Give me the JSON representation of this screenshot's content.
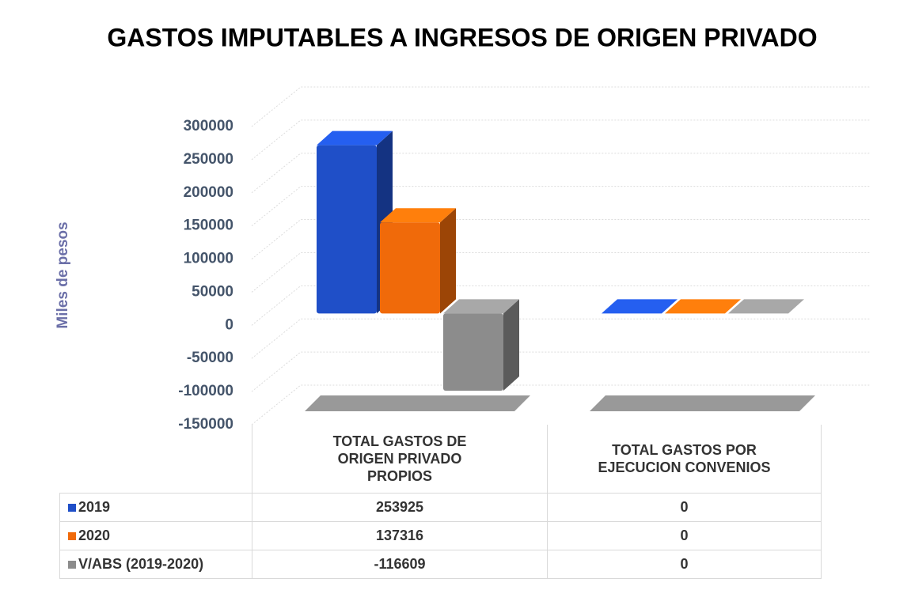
{
  "chart_data": {
    "type": "bar3d",
    "title": "GASTOS IMPUTABLES A INGRESOS DE ORIGEN PRIVADO",
    "y_label": "Miles de pesos",
    "categories": [
      "TOTAL GASTOS DE ORIGEN PRIVADO PROPIOS",
      "TOTAL GASTOS POR EJECUCION CONVENIOS"
    ],
    "series": [
      {
        "name": "2019",
        "color": "#1f4fc8",
        "values": [
          253925,
          0
        ]
      },
      {
        "name": "2020",
        "color": "#f06a0a",
        "values": [
          137316,
          0
        ]
      },
      {
        "name": "V/ABS (2019-2020)",
        "color": "#8c8c8c",
        "values": [
          -116609,
          0
        ]
      }
    ],
    "ylim": [
      -150000,
      300000
    ],
    "yticks": [
      -150000,
      -100000,
      -50000,
      0,
      50000,
      100000,
      150000,
      200000,
      250000,
      300000
    ],
    "grid": true
  }
}
